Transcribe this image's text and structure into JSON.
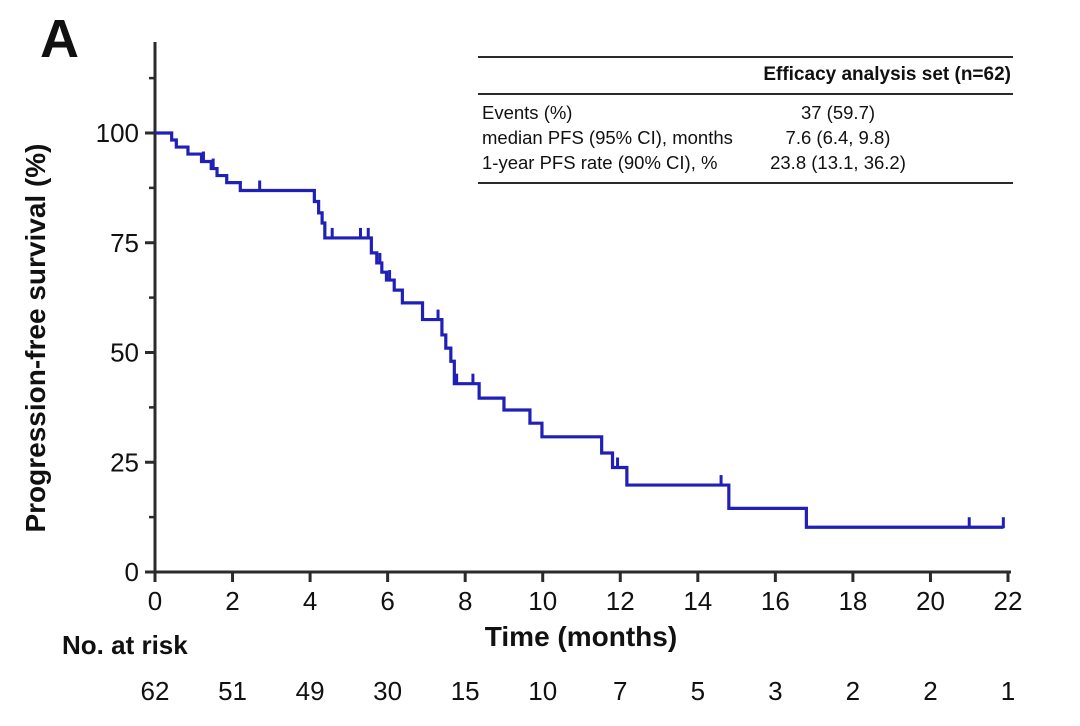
{
  "panel_label": "A",
  "colors": {
    "curve": "#2020b8",
    "axis": "#2b2b2b",
    "text": "#111111",
    "background": "#ffffff"
  },
  "table": {
    "header": "Efficacy analysis set (n=62)",
    "rows": [
      {
        "label": "Events (%)",
        "value": "37 (59.7)"
      },
      {
        "label": "median PFS (95% CI), months",
        "value": "7.6 (6.4, 9.8)"
      },
      {
        "label": "1-year PFS rate (90% CI), %",
        "value": "23.8 (13.1, 36.2)"
      }
    ]
  },
  "chart_data": {
    "type": "line",
    "subtype": "kaplan-meier-step",
    "title": "",
    "xlabel": "Time (months)",
    "ylabel": "Progression-free survival (%)",
    "xlim": [
      0,
      22
    ],
    "ylim": [
      0,
      100
    ],
    "x_ticks": [
      0,
      2,
      4,
      6,
      8,
      10,
      12,
      14,
      16,
      18,
      20,
      22
    ],
    "y_ticks": [
      0,
      25,
      50,
      75,
      100
    ],
    "y_minor_ticks": [
      12.5,
      37.5,
      62.5,
      87.5,
      112.5
    ],
    "grid": false,
    "legend": false,
    "series": [
      {
        "name": "Progression-free survival",
        "color": "#2020b8",
        "steps_t_s_percent": [
          [
            0,
            100
          ],
          [
            0.43,
            98.4
          ],
          [
            0.55,
            96.8
          ],
          [
            0.85,
            95.2
          ],
          [
            1.2,
            93.5
          ],
          [
            1.45,
            91.9
          ],
          [
            1.6,
            90.3
          ],
          [
            1.85,
            88.7
          ],
          [
            2.2,
            86.9
          ],
          [
            4.11,
            84.4
          ],
          [
            4.22,
            81.8
          ],
          [
            4.31,
            79.5
          ],
          [
            4.38,
            76.1
          ],
          [
            5.58,
            72.7
          ],
          [
            5.72,
            70.4
          ],
          [
            5.85,
            68.3
          ],
          [
            5.97,
            66.5
          ],
          [
            6.17,
            64.2
          ],
          [
            6.38,
            61.3
          ],
          [
            6.9,
            57.5
          ],
          [
            7.4,
            54.0
          ],
          [
            7.5,
            51.0
          ],
          [
            7.63,
            48.0
          ],
          [
            7.72,
            42.9
          ],
          [
            8.36,
            39.6
          ],
          [
            9.0,
            36.9
          ],
          [
            9.67,
            33.9
          ],
          [
            9.98,
            30.8
          ],
          [
            11.52,
            27.1
          ],
          [
            11.8,
            23.8
          ],
          [
            12.17,
            19.8
          ],
          [
            14.8,
            14.5
          ],
          [
            16.8,
            10.2
          ]
        ],
        "end_time": 21.88,
        "censor_marks_t_s_percent": [
          [
            1.25,
            93.5
          ],
          [
            1.5,
            91.9
          ],
          [
            2.7,
            86.9
          ],
          [
            4.57,
            76.1
          ],
          [
            5.3,
            76.1
          ],
          [
            5.5,
            76.1
          ],
          [
            5.8,
            70.4
          ],
          [
            6.05,
            66.5
          ],
          [
            7.3,
            57.5
          ],
          [
            7.78,
            42.9
          ],
          [
            8.2,
            42.9
          ],
          [
            11.93,
            23.8
          ],
          [
            14.6,
            19.8
          ],
          [
            21.0,
            10.2
          ],
          [
            21.88,
            10.2
          ]
        ]
      }
    ],
    "at_risk": {
      "label": "No. at risk",
      "times": [
        0,
        2,
        4,
        6,
        8,
        10,
        12,
        14,
        16,
        18,
        20,
        22
      ],
      "values": [
        62,
        51,
        49,
        30,
        15,
        10,
        7,
        5,
        3,
        2,
        2,
        1
      ]
    }
  }
}
